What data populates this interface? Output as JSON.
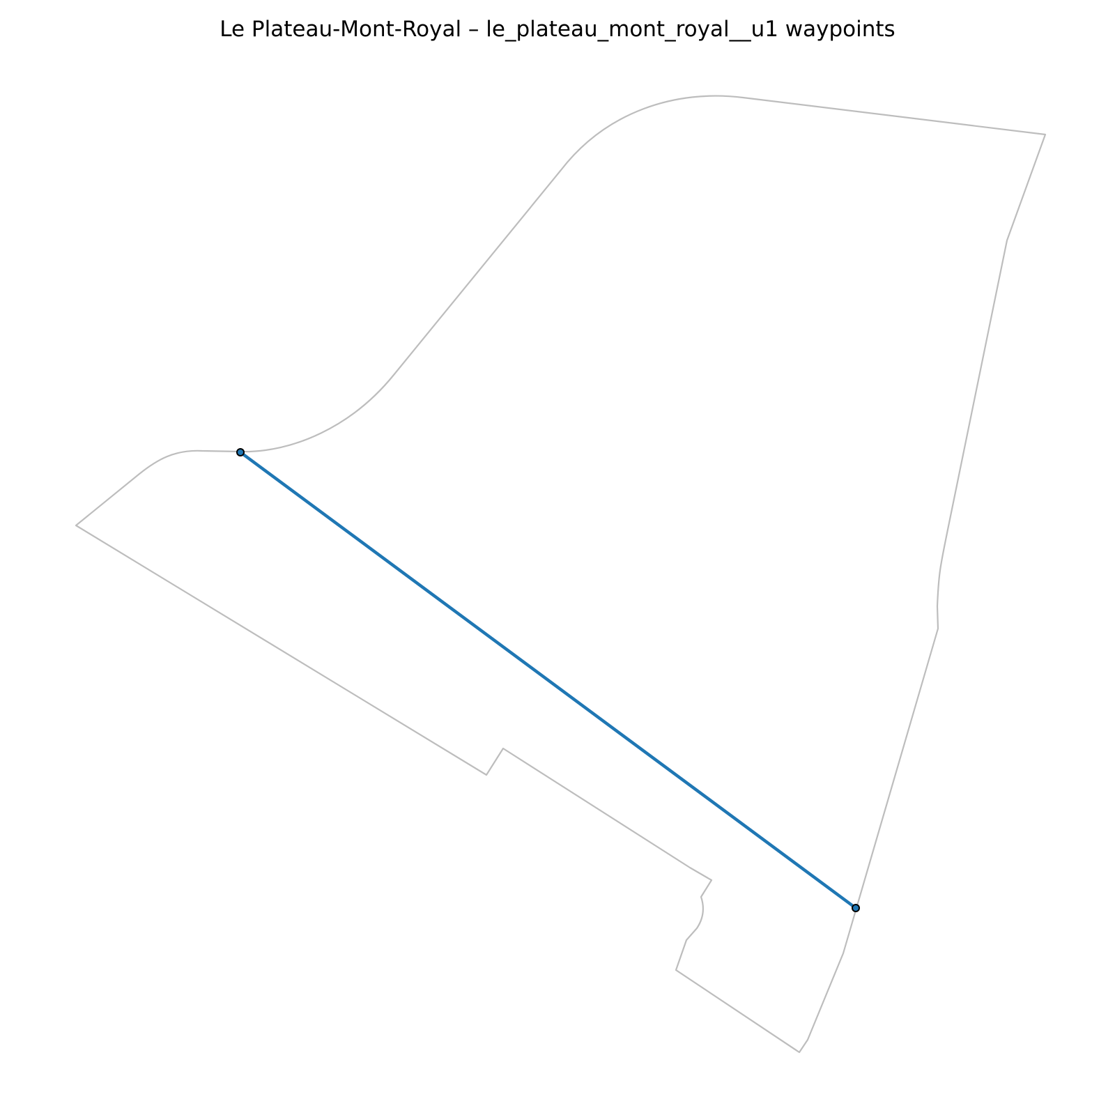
{
  "map": {
    "title": "Le Plateau-Mont-Royal – le_plateau_mont_royal__u1 waypoints",
    "boundary_color": "#bdbdbd",
    "route_color": "#1f77b4",
    "waypoint_color": "#1f77b4",
    "waypoint_edge_color": "#000000",
    "background": "#ffffff",
    "boundary_shape": "district-boundary",
    "waypoint_count": 2
  }
}
